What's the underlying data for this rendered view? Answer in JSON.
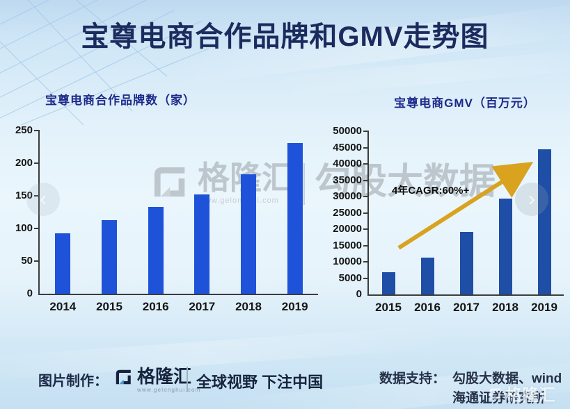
{
  "title": "宝尊电商合作品牌和GMV走势图",
  "chart_data": [
    {
      "type": "bar",
      "title": "宝尊电商合作品牌数（家）",
      "categories": [
        "2014",
        "2015",
        "2016",
        "2017",
        "2018",
        "2019"
      ],
      "values": [
        93,
        113,
        133,
        152,
        183,
        231
      ],
      "xlabel": "",
      "ylabel": "",
      "ylim": [
        0,
        250
      ],
      "ytick_step": 50,
      "grid": false,
      "legend": "none",
      "bar_color": "#1d52d9"
    },
    {
      "type": "bar",
      "title": "宝尊电商GMV（百万元）",
      "categories": [
        "2015",
        "2016",
        "2017",
        "2018",
        "2019"
      ],
      "values": [
        6800,
        11200,
        19100,
        29400,
        44400
      ],
      "xlabel": "",
      "ylabel": "",
      "ylim": [
        0,
        50000
      ],
      "ytick_step": 5000,
      "grid": false,
      "legend": "none",
      "bar_color": "#1e4ea6",
      "annotation": "4年CAGR:60%+",
      "annotation_arrow_color": "#d9a21f"
    }
  ],
  "nav": {
    "left_glyph": "‹",
    "right_glyph": "›"
  },
  "watermark_center": {
    "brand": "格隆汇",
    "site": "www.gelonghui.com",
    "partner": "勾股大数据"
  },
  "watermark_corner": {
    "brand": "格隆汇"
  },
  "footer": {
    "made_by_label": "图片制作：",
    "brand": "格隆汇",
    "brand_site": "www.gelonghui.com",
    "slogan": "全球视野 下注中国",
    "data_support_label": "数据支持：",
    "data_support_line1": "勾股大数据、wind",
    "data_support_line2": "海通证券研究所"
  },
  "colors": {
    "title_navy": "#1c2b5e",
    "chart_title_navy": "#1e2a8a",
    "left_bar_blue": "#1d52d9",
    "right_bar_blue": "#1e4ea6",
    "arrow_gold": "#d9a21f",
    "axis_dark": "#3c3c3c",
    "background_light_blue": "#e2f1fa"
  }
}
